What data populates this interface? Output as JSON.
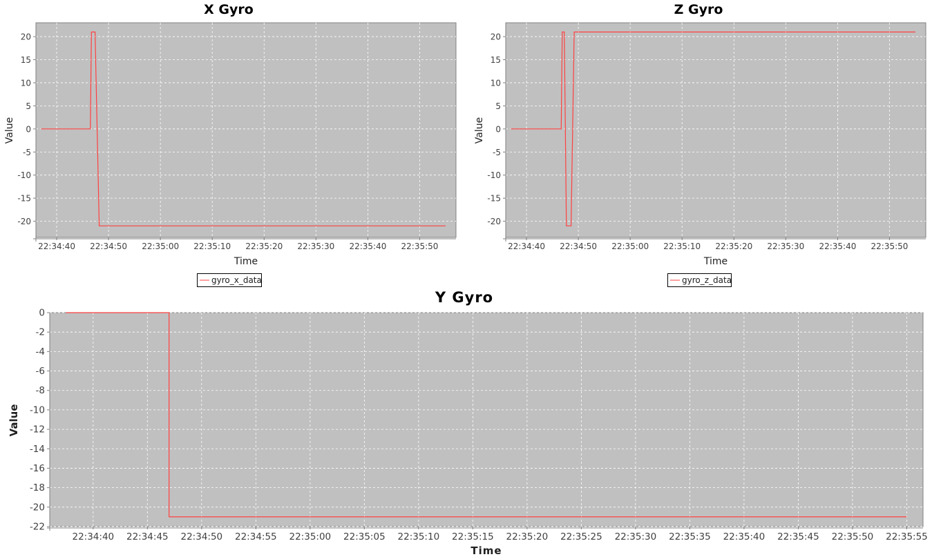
{
  "chart_data": [
    {
      "id": "x",
      "type": "line",
      "title": "X Gyro",
      "xlabel": "Time",
      "ylabel": "Value",
      "xticks": [
        "22:34:40",
        "22:34:50",
        "22:35:00",
        "22:35:10",
        "22:35:20",
        "22:35:30",
        "22:35:40",
        "22:35:50"
      ],
      "xlim": [
        "22:34:36",
        "22:35:57"
      ],
      "yticks": [
        20,
        15,
        10,
        5,
        0,
        -5,
        -10,
        -15,
        -20
      ],
      "ylim": [
        -23.5,
        23
      ],
      "grid": true,
      "legend": "bottom-center",
      "background_color": "#c0c0c0",
      "series": [
        {
          "name": "gyro_x_data",
          "color": "#ff4040",
          "points": [
            [
              "22:34:37",
              0
            ],
            [
              "22:34:46.5",
              0
            ],
            [
              "22:34:46.7",
              21
            ],
            [
              "22:34:47.4",
              21
            ],
            [
              "22:34:48.2",
              -21
            ],
            [
              "22:35:55",
              -21
            ]
          ]
        }
      ]
    },
    {
      "id": "z",
      "type": "line",
      "title": "Z Gyro",
      "xlabel": "Time",
      "ylabel": "Value",
      "xticks": [
        "22:34:40",
        "22:34:50",
        "22:35:00",
        "22:35:10",
        "22:35:20",
        "22:35:30",
        "22:35:40",
        "22:35:50"
      ],
      "xlim": [
        "22:34:36",
        "22:35:57"
      ],
      "yticks": [
        20,
        15,
        10,
        5,
        0,
        -5,
        -10,
        -15,
        -20
      ],
      "ylim": [
        -23.5,
        23
      ],
      "grid": true,
      "legend": "bottom-center",
      "background_color": "#c0c0c0",
      "series": [
        {
          "name": "gyro_z_data",
          "color": "#ff4040",
          "points": [
            [
              "22:34:37",
              0
            ],
            [
              "22:34:46.7",
              0
            ],
            [
              "22:34:46.9",
              21
            ],
            [
              "22:34:47.3",
              21
            ],
            [
              "22:34:47.7",
              -21
            ],
            [
              "22:34:48.6",
              -21
            ],
            [
              "22:34:49.2",
              21
            ],
            [
              "22:35:55",
              21
            ]
          ]
        }
      ]
    },
    {
      "id": "y",
      "type": "line",
      "title": "Y Gyro",
      "xlabel": "Time",
      "ylabel": "Value",
      "xticks": [
        "22:34:40",
        "22:34:45",
        "22:34:50",
        "22:34:55",
        "22:35:00",
        "22:35:05",
        "22:35:10",
        "22:35:15",
        "22:35:20",
        "22:35:25",
        "22:35:30",
        "22:35:35",
        "22:35:40",
        "22:35:45",
        "22:35:50",
        "22:35:55"
      ],
      "xlim": [
        "22:34:36",
        "22:35:56.5"
      ],
      "yticks": [
        0,
        -2,
        -4,
        -6,
        -8,
        -10,
        -12,
        -14,
        -16,
        -18,
        -20,
        -22
      ],
      "ylim": [
        -22,
        0
      ],
      "grid": true,
      "legend": "none",
      "background_color": "#c0c0c0",
      "series": [
        {
          "color": "#ff4040",
          "points": [
            [
              "22:34:37.5",
              0
            ],
            [
              "22:34:47",
              0
            ],
            [
              "22:34:47",
              -21
            ],
            [
              "22:35:55",
              -21
            ]
          ]
        }
      ]
    }
  ]
}
